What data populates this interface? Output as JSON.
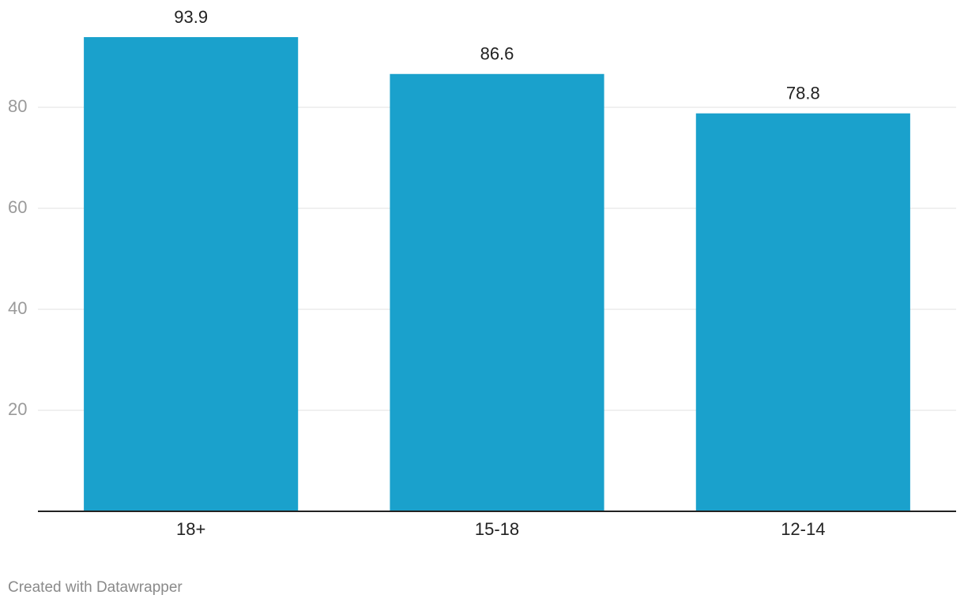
{
  "chart_data": {
    "type": "bar",
    "categories": [
      "18+",
      "15-18",
      "12-14"
    ],
    "values": [
      93.9,
      86.6,
      78.8
    ],
    "color": "#1aa1cc",
    "ylim": [
      0,
      100
    ],
    "yticks": [
      20,
      40,
      60,
      80
    ],
    "grid": true,
    "credit": "Created with Datawrapper"
  }
}
